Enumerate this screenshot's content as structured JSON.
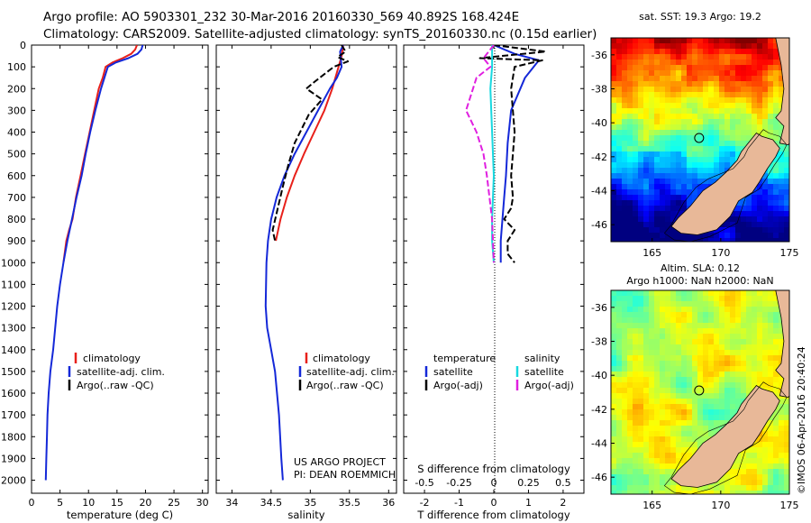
{
  "header": {
    "line1": "Argo profile: AO 5903301_232 30-Mar-2016 20160330_569 40.892S 168.424E",
    "line2": "Climatology: CARS2009. Satellite-adjusted climatology: synTS_20160330.nc (0.15d earlier)"
  },
  "colors": {
    "climatology": "#e8201a",
    "satellite": "#1428d8",
    "argo": "#000000",
    "sal_satellite": "#18d8e0",
    "sal_argo": "#e020e0",
    "land": "#e8b898"
  },
  "chart_data": [
    {
      "type": "line",
      "panel": "temperature",
      "xlabel": "temperature (deg C)",
      "ylabel": "",
      "xlim": [
        0,
        31
      ],
      "ylim": [
        2060,
        0
      ],
      "xticks": [
        0,
        5,
        10,
        15,
        20,
        25,
        30
      ],
      "yticks": [
        0,
        100,
        200,
        300,
        400,
        500,
        600,
        700,
        800,
        900,
        1000,
        1100,
        1200,
        1300,
        1400,
        1500,
        1600,
        1700,
        1800,
        1900,
        2000
      ],
      "legend": [
        "climatology",
        "satellite-adj. clim.",
        "Argo(..raw -QC)"
      ],
      "series": [
        {
          "name": "climatology",
          "color": "#e8201a",
          "x": [
            18.5,
            18.2,
            17.5,
            16.0,
            14.2,
            13.0,
            12.5,
            11.8,
            11.0,
            10.2,
            9.4,
            8.6,
            7.8,
            7.2,
            6.6,
            6.1,
            5.6
          ],
          "y": [
            0,
            20,
            40,
            60,
            80,
            100,
            150,
            200,
            300,
            400,
            500,
            600,
            700,
            800,
            850,
            900,
            1000
          ]
        },
        {
          "name": "satellite-adj. clim.",
          "color": "#1428d8",
          "x": [
            19.5,
            19.3,
            18.6,
            17.0,
            14.8,
            13.4,
            12.8,
            12.2,
            11.2,
            10.3,
            9.5,
            8.8,
            7.9,
            7.1,
            6.3,
            5.6,
            5.0,
            4.5,
            3.8,
            3.3,
            3.0,
            2.8,
            2.7,
            2.6,
            2.5
          ],
          "y": [
            0,
            20,
            40,
            60,
            80,
            100,
            150,
            200,
            300,
            400,
            500,
            600,
            700,
            800,
            900,
            1000,
            1100,
            1200,
            1400,
            1500,
            1600,
            1700,
            1800,
            1900,
            2000
          ]
        }
      ]
    },
    {
      "type": "line",
      "panel": "salinity",
      "xlabel": "salinity",
      "xlim": [
        33.8,
        36.1
      ],
      "ylim": [
        2060,
        0
      ],
      "xticks": [
        34,
        34.5,
        35,
        35.5,
        36
      ],
      "xticklabels": [
        "34",
        "34.5",
        "35",
        "35.5",
        "36"
      ],
      "legend": [
        "climatology",
        "satellite-adj. clim.",
        "Argo(..raw -QC)"
      ],
      "annotation": [
        "US ARGO PROJECT",
        "PI: DEAN ROEMMICH"
      ],
      "series": [
        {
          "name": "climatology",
          "color": "#e8201a",
          "x": [
            35.42,
            35.4,
            35.36,
            35.28,
            35.18,
            35.05,
            34.92,
            34.8,
            34.7,
            34.62,
            34.56
          ],
          "y": [
            0,
            50,
            100,
            200,
            300,
            400,
            500,
            600,
            700,
            800,
            900
          ]
        },
        {
          "name": "satellite-adj. clim.",
          "color": "#1428d8",
          "x": [
            35.42,
            35.38,
            35.4,
            35.34,
            35.25,
            35.1,
            34.95,
            34.8,
            34.67,
            34.57,
            34.5,
            34.46,
            34.44,
            34.43,
            34.45,
            34.5,
            34.55,
            34.6,
            34.63,
            34.65
          ],
          "y": [
            0,
            30,
            100,
            150,
            200,
            300,
            400,
            500,
            600,
            700,
            800,
            900,
            1000,
            1200,
            1300,
            1400,
            1500,
            1700,
            1900,
            2000
          ]
        },
        {
          "name": "Argo(..raw -QC)",
          "color": "#000000",
          "dash": true,
          "x": [
            35.4,
            35.45,
            35.35,
            35.48,
            35.3,
            35.05,
            34.95,
            35.15,
            34.98,
            34.8,
            34.72,
            34.65,
            34.52,
            34.55
          ],
          "y": [
            0,
            30,
            55,
            75,
            100,
            170,
            200,
            250,
            320,
            450,
            550,
            650,
            850,
            900
          ]
        }
      ]
    },
    {
      "type": "line",
      "panel": "difference",
      "xlabel": "T difference from climatology",
      "x2label": "S difference from climatology",
      "xlim": [
        -2.6,
        2.6
      ],
      "ylim": [
        2060,
        0
      ],
      "xticks": [
        -2,
        -1,
        0,
        1,
        2
      ],
      "x2ticklabels": [
        "-0.5",
        "-0.25",
        "0",
        "0.25",
        "0.5"
      ],
      "legend_left": [
        "temperature",
        "satellite",
        "Argo(-adj)"
      ],
      "legend_right": [
        "salinity",
        "satellite",
        "Argo(-adj)"
      ],
      "series": [
        {
          "name": "satellite",
          "color": "#1428d8",
          "x": [
            0.0,
            0.6,
            1.3,
            0.9,
            0.5,
            0.4,
            0.35,
            0.3,
            0.25,
            0.2,
            0.2,
            0.2
          ],
          "y": [
            0,
            40,
            70,
            150,
            300,
            450,
            600,
            700,
            800,
            900,
            950,
            1000
          ]
        },
        {
          "name": "Argo(-adj)",
          "color": "#000000",
          "dash": true,
          "x": [
            0.0,
            1.5,
            -0.4,
            1.4,
            0.6,
            0.5,
            0.6,
            0.55,
            0.5,
            0.55,
            0.5,
            0.3,
            0.6,
            0.4,
            0.4,
            0.6
          ],
          "y": [
            0,
            30,
            60,
            70,
            100,
            200,
            400,
            500,
            600,
            700,
            750,
            800,
            850,
            900,
            960,
            1000
          ]
        },
        {
          "name": "salinity satellite",
          "color": "#18d8e0",
          "x": [
            -0.05,
            -0.05,
            -0.1,
            -0.05,
            0.0,
            -0.05,
            -0.05,
            0.0
          ],
          "y": [
            0,
            100,
            200,
            400,
            600,
            800,
            900,
            1000
          ]
        },
        {
          "name": "salinity Argo(-adj)",
          "color": "#e020e0",
          "dash": true,
          "x": [
            0.0,
            -0.3,
            -0.1,
            -0.5,
            -0.8,
            -0.5,
            -0.3,
            -0.2,
            -0.05,
            0.0
          ],
          "y": [
            0,
            60,
            100,
            150,
            300,
            400,
            500,
            600,
            800,
            1000
          ]
        }
      ]
    },
    {
      "type": "heatmap",
      "panel": "sst-map",
      "title": "sat. SST: 19.3 Argo: 19.2",
      "xticks": [
        165,
        170,
        175
      ],
      "yticklabels": [
        "-36",
        "-38",
        "-40",
        "-42",
        "-44",
        "-46"
      ],
      "lon_range": [
        162,
        175
      ],
      "lat_range": [
        -47,
        -35
      ],
      "argo_position": {
        "lon": 168.424,
        "lat": -40.892
      }
    },
    {
      "type": "heatmap",
      "panel": "sla-map",
      "title_line1": "Altim. SLA: 0.12",
      "title_line2": "Argo h1000: NaN h2000: NaN",
      "xticks": [
        165,
        170,
        175
      ],
      "yticklabels": [
        "-36",
        "-38",
        "-40",
        "-42",
        "-44",
        "-46"
      ],
      "lon_range": [
        162,
        175
      ],
      "lat_range": [
        -47,
        -35
      ],
      "argo_position": {
        "lon": 168.424,
        "lat": -40.892
      }
    }
  ],
  "watermark": "©IMOS 06-Apr-2016 20:40:24"
}
